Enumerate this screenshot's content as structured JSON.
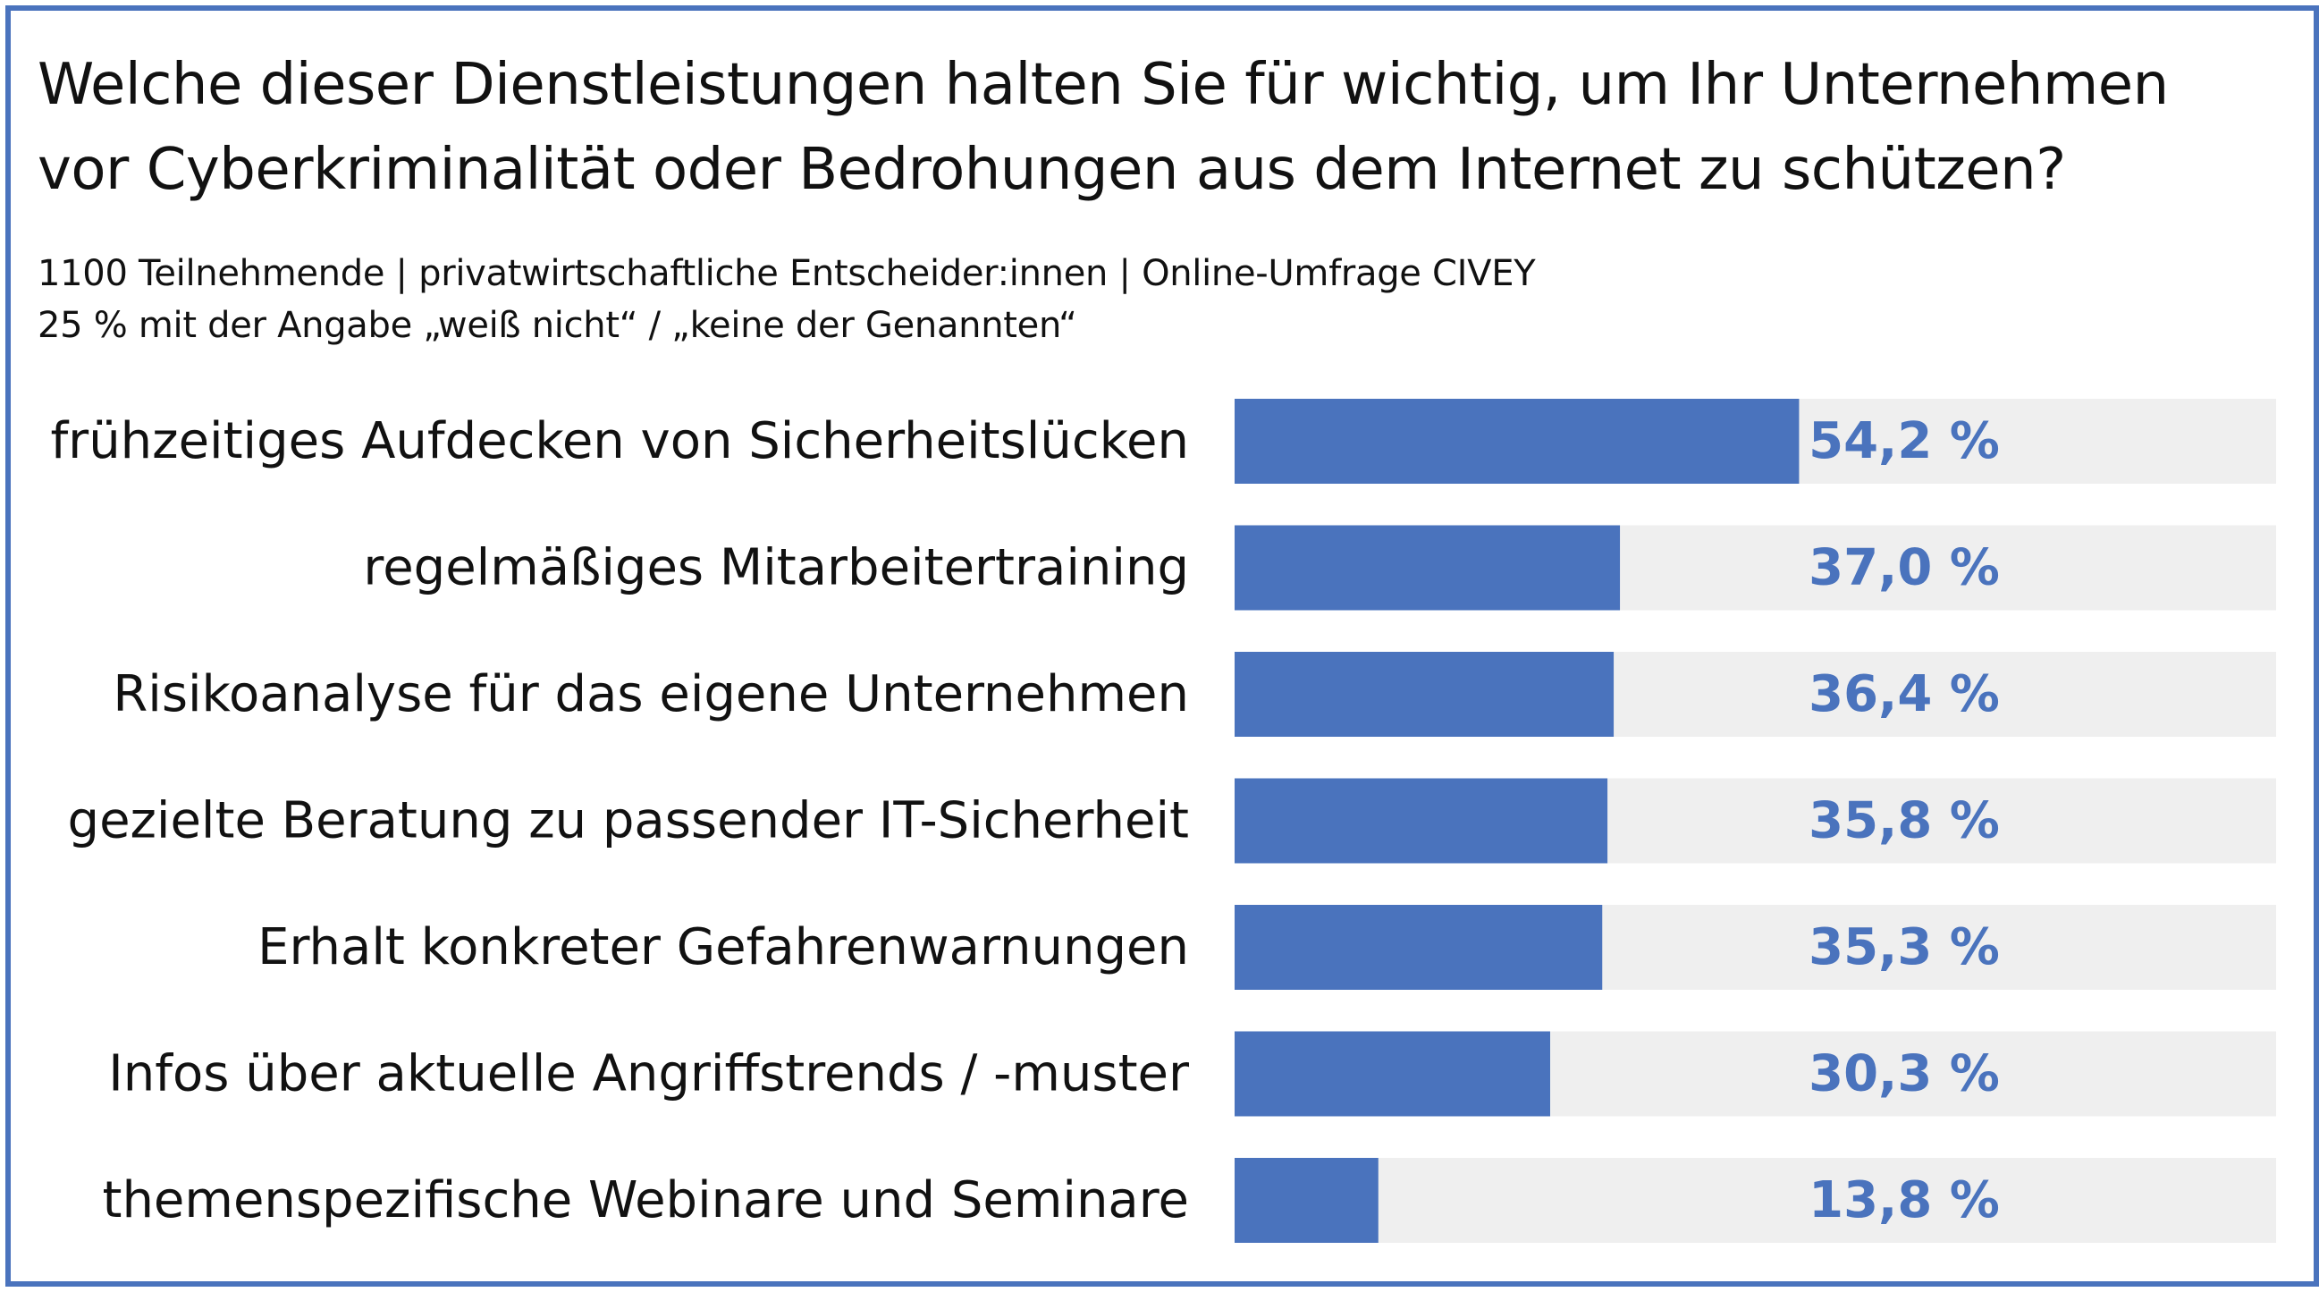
{
  "title": "Welche dieser Dienstleistungen halten Sie für wichtig, um Ihr Unternehmen vor Cyberkriminalität oder Bedrohungen aus dem Internet zu schützen?",
  "subtitle_line1": "1100 Teilnehmende | privatwirtschaftliche Entscheider:innen | Online-Umfrage CIVEY",
  "subtitle_line2": "25 % mit der Angabe „weiß nicht“ /  „keine der Genannten“",
  "colors": {
    "bar": "#4a73bd",
    "track": "#efefef",
    "border": "#4a73bd",
    "value_text": "#4a73bd"
  },
  "chart_data": {
    "type": "bar",
    "orientation": "horizontal",
    "categories": [
      "frühzeitiges Aufdecken von Sicherheitslücken",
      "regelmäßiges Mitarbeitertraining",
      "Risikoanalyse für das eigene Unternehmen",
      "gezielte Beratung zu passender IT-Sicherheit",
      "Erhalt konkreter Gefahrenwarnungen",
      "Infos über aktuelle Angriffstrends / -muster",
      "themenspezifische Webinare und Seminare"
    ],
    "values": [
      54.2,
      37.0,
      36.4,
      35.8,
      35.3,
      30.3,
      13.8
    ],
    "value_labels": [
      "54,2 %",
      "37,0 %",
      "36,4 %",
      "35,8 %",
      "35,3 %",
      "30,3 %",
      "13,8 %"
    ],
    "unit": "%",
    "xlim": [
      0,
      100
    ],
    "grid": false,
    "legend": "none"
  }
}
